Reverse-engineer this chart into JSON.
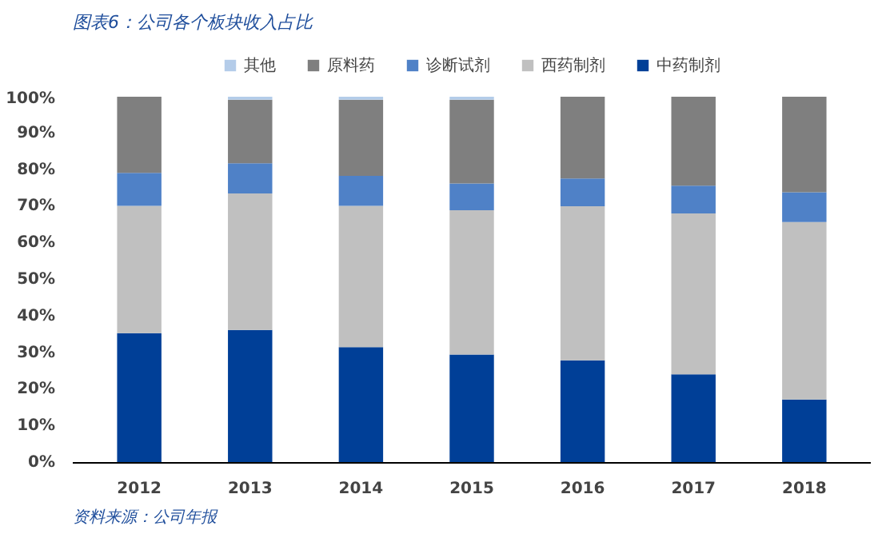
{
  "chart_data": {
    "type": "bar",
    "title": "图表6：公司各个板块收入占比",
    "stacked": true,
    "categories": [
      "2012",
      "2013",
      "2014",
      "2015",
      "2016",
      "2017",
      "2018"
    ],
    "series": [
      {
        "name": "中药制剂",
        "color": "#003f97",
        "values": [
          35.4,
          36.3,
          31.6,
          29.6,
          28.0,
          24.2,
          17.3
        ]
      },
      {
        "name": "西药制剂",
        "color": "#c0c0c0",
        "values": [
          34.8,
          37.3,
          38.6,
          39.4,
          42.1,
          43.9,
          48.5
        ]
      },
      {
        "name": "诊断试剂",
        "color": "#4f81c7",
        "values": [
          9.0,
          8.2,
          8.2,
          7.3,
          7.6,
          7.6,
          8.1
        ]
      },
      {
        "name": "原料药",
        "color": "#7f7f7f",
        "values": [
          20.8,
          17.4,
          20.8,
          22.9,
          22.3,
          24.3,
          26.1
        ]
      },
      {
        "name": "其他",
        "color": "#b4cce9",
        "values": [
          null,
          0.8,
          0.8,
          0.8,
          null,
          null,
          null
        ]
      }
    ],
    "ylim": [
      0,
      100
    ],
    "yticks": [
      {
        "value": 0,
        "label": "0%"
      },
      {
        "value": 10,
        "label": "10%"
      },
      {
        "value": 20,
        "label": "20%"
      },
      {
        "value": 30,
        "label": "30%"
      },
      {
        "value": 40,
        "label": "40%"
      },
      {
        "value": 50,
        "label": "50%"
      },
      {
        "value": 60,
        "label": "60%"
      },
      {
        "value": 70,
        "label": "70%"
      },
      {
        "value": 80,
        "label": "80%"
      },
      {
        "value": 90,
        "label": "90%"
      },
      {
        "value": 100,
        "label": "100%"
      }
    ],
    "legend": "top",
    "annotations": [
      "资料来源：公司年报"
    ]
  }
}
